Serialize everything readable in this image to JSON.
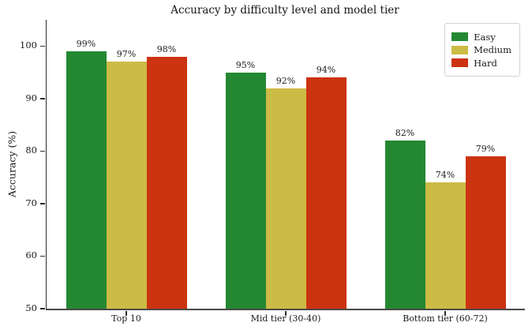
{
  "chart_data": {
    "type": "bar",
    "title": "Accuracy by difficulty level and model tier",
    "xlabel": "",
    "ylabel": "Accuracy (%)",
    "categories": [
      "Top 10",
      "Mid tier (30-40)",
      "Bottom tier (60-72)"
    ],
    "series": [
      {
        "name": "Easy",
        "color": "#248832",
        "values": [
          99,
          95,
          82
        ],
        "labels": [
          "99%",
          "95%",
          "82%"
        ]
      },
      {
        "name": "Medium",
        "color": "#ccbb44",
        "values": [
          97,
          92,
          74
        ],
        "labels": [
          "97%",
          "92%",
          "74%"
        ]
      },
      {
        "name": "Hard",
        "color": "#cc3311",
        "values": [
          98,
          94,
          79
        ],
        "labels": [
          "98%",
          "94%",
          "79%"
        ]
      }
    ],
    "ylim": [
      50,
      105
    ],
    "yticks": [
      50,
      60,
      70,
      80,
      90,
      100
    ],
    "grid": false,
    "background": "#ffffff",
    "legend": {
      "position": "upper right",
      "entries": [
        "Easy",
        "Medium",
        "Hard"
      ]
    }
  }
}
